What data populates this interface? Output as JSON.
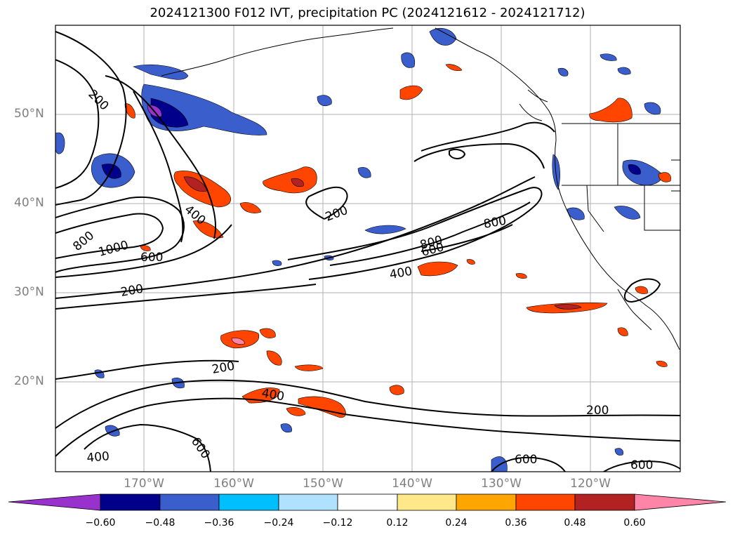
{
  "title": "2024121300 F012 IVT, precipitation PC (2024121612 - 2024121712)",
  "lat_labels": [
    "50°N",
    "40°N",
    "30°N",
    "20°N"
  ],
  "lon_labels": [
    "170°W",
    "160°W",
    "150°W",
    "140°W",
    "130°W",
    "120°W"
  ],
  "contour_labels": [
    "200",
    "400",
    "800",
    "1000",
    "600",
    "200",
    "200",
    "800",
    "800",
    "600",
    "400",
    "200",
    "400",
    "400",
    "600",
    "200",
    "600",
    "600"
  ],
  "colorbar": {
    "colors": [
      "#9932cc",
      "#00008b",
      "#3a5fcd",
      "#00bfff",
      "#b0e2ff",
      "#ffffff",
      "#ffe88a",
      "#ffa500",
      "#ff4500",
      "#b22222",
      "#ff85a8"
    ],
    "ticks": [
      "−0.60",
      "−0.48",
      "−0.36",
      "−0.24",
      "−0.12",
      "0.12",
      "0.24",
      "0.36",
      "0.48",
      "0.60"
    ]
  }
}
